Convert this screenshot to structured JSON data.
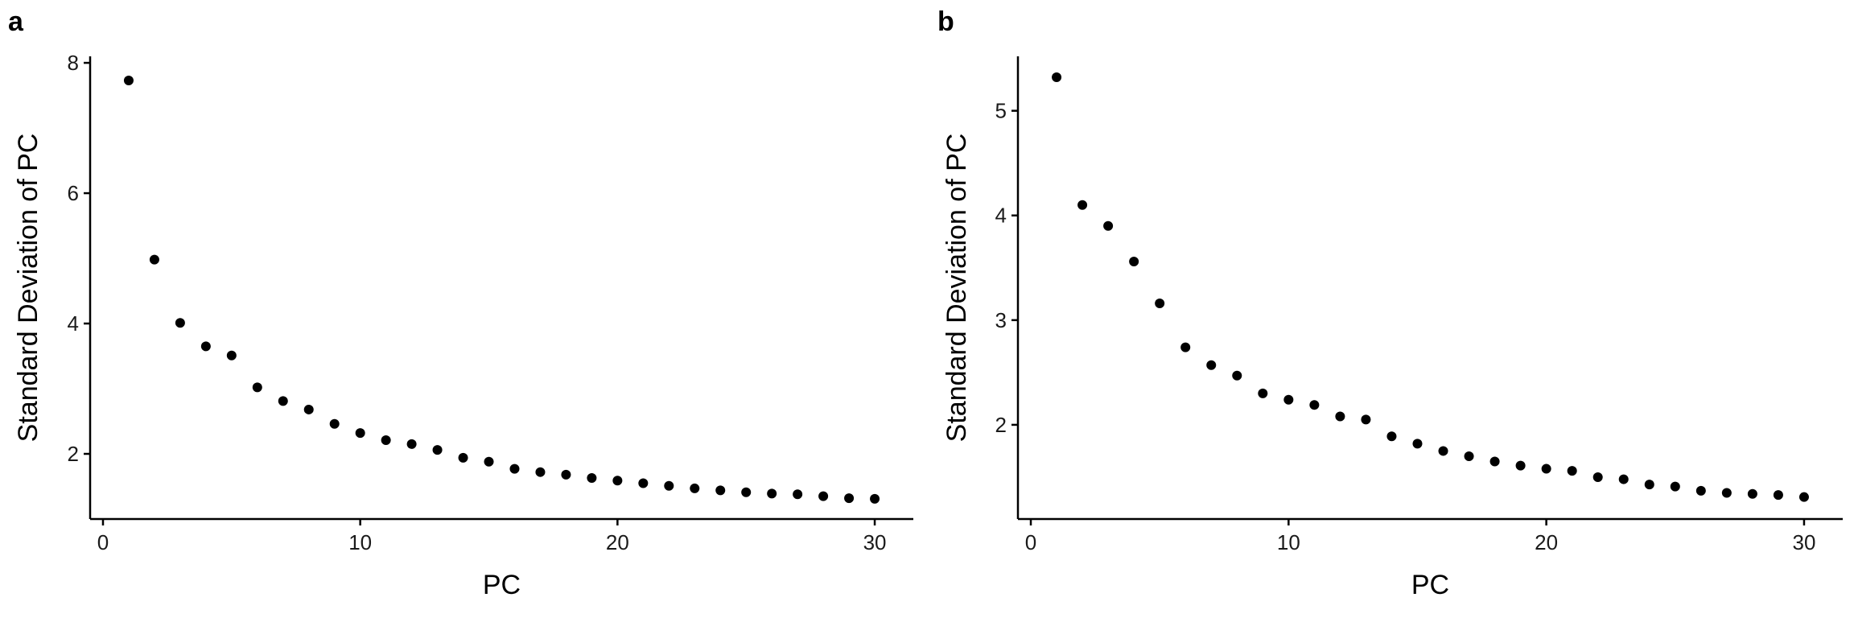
{
  "chart_data": [
    {
      "type": "scatter",
      "panel_label": "a",
      "xlabel": "PC",
      "ylabel": "Standard Deviation of PC",
      "xlim": [
        -0.5,
        31.5
      ],
      "ylim": [
        1.0,
        8.1
      ],
      "xticks": [
        0,
        10,
        20,
        30
      ],
      "yticks": [
        2,
        4,
        6,
        8
      ],
      "grid": false,
      "color": "#000000",
      "x": [
        1,
        2,
        3,
        4,
        5,
        6,
        7,
        8,
        9,
        10,
        11,
        12,
        13,
        14,
        15,
        16,
        17,
        18,
        19,
        20,
        21,
        22,
        23,
        24,
        25,
        26,
        27,
        28,
        29,
        30
      ],
      "y": [
        7.73,
        4.98,
        4.01,
        3.65,
        3.51,
        3.02,
        2.81,
        2.68,
        2.46,
        2.32,
        2.21,
        2.15,
        2.06,
        1.94,
        1.88,
        1.77,
        1.72,
        1.68,
        1.63,
        1.59,
        1.55,
        1.51,
        1.47,
        1.44,
        1.41,
        1.39,
        1.38,
        1.35,
        1.32,
        1.31
      ]
    },
    {
      "type": "scatter",
      "panel_label": "b",
      "xlabel": "PC",
      "ylabel": "Standard Deviation of PC",
      "xlim": [
        -0.5,
        31.5
      ],
      "ylim": [
        1.1,
        5.52
      ],
      "xticks": [
        0,
        10,
        20,
        30
      ],
      "yticks": [
        2,
        3,
        4,
        5
      ],
      "grid": false,
      "color": "#000000",
      "x": [
        1,
        2,
        3,
        4,
        5,
        6,
        7,
        8,
        9,
        10,
        11,
        12,
        13,
        14,
        15,
        16,
        17,
        18,
        19,
        20,
        21,
        22,
        23,
        24,
        25,
        26,
        27,
        28,
        29,
        30
      ],
      "y": [
        5.32,
        4.1,
        3.9,
        3.56,
        3.16,
        2.74,
        2.57,
        2.47,
        2.3,
        2.24,
        2.19,
        2.08,
        2.05,
        1.89,
        1.82,
        1.75,
        1.7,
        1.65,
        1.61,
        1.58,
        1.56,
        1.5,
        1.48,
        1.43,
        1.41,
        1.37,
        1.35,
        1.34,
        1.33,
        1.31
      ]
    }
  ]
}
